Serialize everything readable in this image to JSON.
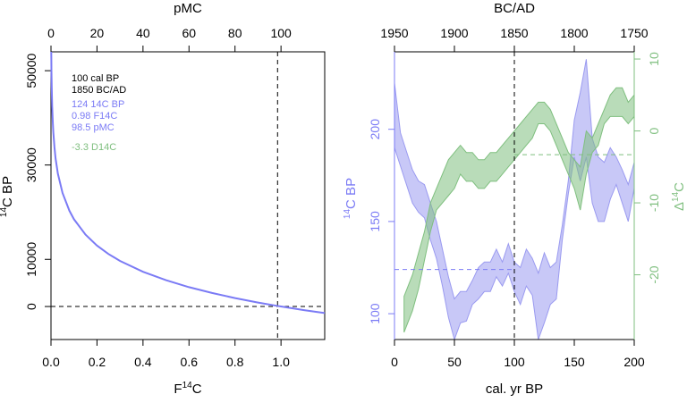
{
  "chart_data": [
    {
      "type": "line",
      "panel": "left",
      "xlabel_bottom": "F",
      "xlabel_bottom_sup": "14",
      "xlabel_bottom_suffix": "C",
      "xlabel_top": "pMC",
      "ylabel_sup": "14",
      "ylabel": "C BP",
      "xlim": [
        0,
        1.19
      ],
      "ylim": [
        -7000,
        54000
      ],
      "x_ticks": [
        "0.0",
        "0.2",
        "0.4",
        "0.6",
        "0.8",
        "1.0"
      ],
      "x_top_ticks": [
        "0",
        "20",
        "40",
        "60",
        "80",
        "100"
      ],
      "y_ticks": [
        "0",
        "10000",
        "30000",
        "50000"
      ],
      "series": [
        {
          "color": "#7b7bf5",
          "x": [
            0.001,
            0.0015,
            0.002,
            0.003,
            0.005,
            0.008,
            0.01,
            0.015,
            0.02,
            0.03,
            0.05,
            0.08,
            0.1,
            0.15,
            0.2,
            0.25,
            0.3,
            0.4,
            0.5,
            0.6,
            0.7,
            0.8,
            0.9,
            0.98,
            1.0,
            1.1,
            1.19
          ],
          "y": [
            55488,
            52231,
            49920,
            46663,
            42560,
            38785,
            36993,
            33736,
            31425,
            28168,
            24065,
            20290,
            18498,
            15241,
            12930,
            11138,
            9673,
            7362,
            5570,
            4105,
            2867,
            1793,
            847,
            162,
            0,
            -766,
            -1398
          ]
        }
      ],
      "reference_lines": {
        "x": 0.985,
        "y": 0
      },
      "annotations": [
        {
          "text": "100 cal BP",
          "color": "#000000"
        },
        {
          "text": "1850 BC/AD",
          "color": "#000000"
        },
        {
          "text": "124 14C BP",
          "color": "#7b7bf5"
        },
        {
          "text": "0.98 F14C",
          "color": "#7b7bf5"
        },
        {
          "text": "98.5 pMC",
          "color": "#7b7bf5"
        },
        {
          "text": "-3.3 D14C",
          "color": "#7fbf7f"
        }
      ]
    },
    {
      "type": "area",
      "panel": "right",
      "xlabel": "cal. yr BP",
      "xlabel_top": "BC/AD",
      "ylabel_sup": "14",
      "ylabel": "C BP",
      "ylabel_right_prefix": "Δ",
      "ylabel_right_sup": "14",
      "ylabel_right_suffix": "C",
      "xlim": [
        0,
        200
      ],
      "ylim": [
        86,
        242
      ],
      "ylim_right": [
        -29,
        11
      ],
      "x_ticks": [
        "0",
        "50",
        "100",
        "150",
        "200"
      ],
      "x_top_ticks": [
        "1950",
        "1900",
        "1850",
        "1800",
        "1750"
      ],
      "y_ticks": [
        "100",
        "150",
        "200"
      ],
      "y_right_ticks": [
        "10",
        "0",
        "-10",
        "-20"
      ],
      "series": [
        {
          "name": "",
          "color": "#9a9af0",
          "x": [
            0,
            5,
            10,
            15,
            20,
            25,
            30,
            35,
            40,
            45,
            50,
            55,
            60,
            65,
            70,
            75,
            80,
            85,
            90,
            95,
            100,
            105,
            110,
            115,
            120,
            125,
            130,
            135,
            140,
            145,
            150,
            155,
            160,
            165,
            170,
            175,
            180,
            185,
            190,
            195,
            200
          ],
          "y_upper": [
            225,
            198,
            188,
            178,
            172,
            170,
            160,
            150,
            135,
            120,
            108,
            112,
            112,
            118,
            125,
            128,
            128,
            135,
            128,
            138,
            128,
            125,
            135,
            130,
            122,
            133,
            125,
            128,
            148,
            172,
            205,
            220,
            238,
            195,
            185,
            182,
            190,
            185,
            178,
            170,
            182
          ],
          "y_lower": [
            190,
            180,
            170,
            160,
            155,
            152,
            140,
            130,
            115,
            98,
            86,
            95,
            96,
            105,
            108,
            112,
            112,
            120,
            115,
            122,
            112,
            105,
            115,
            110,
            86,
            95,
            105,
            108,
            140,
            165,
            185,
            172,
            185,
            160,
            150,
            150,
            162,
            170,
            160,
            150,
            168
          ]
        },
        {
          "name": "",
          "color": "#7fbf7f",
          "x": [
            8,
            15,
            20,
            25,
            30,
            35,
            40,
            45,
            50,
            55,
            60,
            65,
            70,
            75,
            80,
            85,
            90,
            95,
            100,
            105,
            110,
            115,
            120,
            125,
            130,
            135,
            140,
            145,
            150,
            155,
            160,
            165,
            170,
            175,
            180,
            185,
            190,
            195,
            200
          ],
          "y_upper": [
            -23,
            -20,
            -17,
            -14,
            -10,
            -8,
            -6,
            -4,
            -3,
            -2,
            -3,
            -3,
            -4,
            -4,
            -3,
            -3,
            -2,
            -1,
            0,
            1,
            2,
            3,
            4,
            4,
            3,
            1,
            -1,
            -3,
            -4,
            -5,
            0,
            -1,
            1,
            3,
            5,
            6,
            6,
            4,
            5
          ],
          "y_lower": [
            -28,
            -25,
            -22,
            -18,
            -14,
            -11,
            -10,
            -9,
            -8,
            -6,
            -7,
            -7,
            -8,
            -8,
            -7,
            -7,
            -6,
            -5,
            -4,
            -3,
            -2,
            -1,
            1,
            1,
            0,
            -2,
            -4,
            -6,
            -8,
            -11,
            -6,
            -3,
            -2,
            1,
            2,
            2,
            2,
            1,
            2
          ]
        }
      ],
      "reference_lines": {
        "x": 100,
        "y": 124,
        "y_right": -3.3
      }
    }
  ]
}
